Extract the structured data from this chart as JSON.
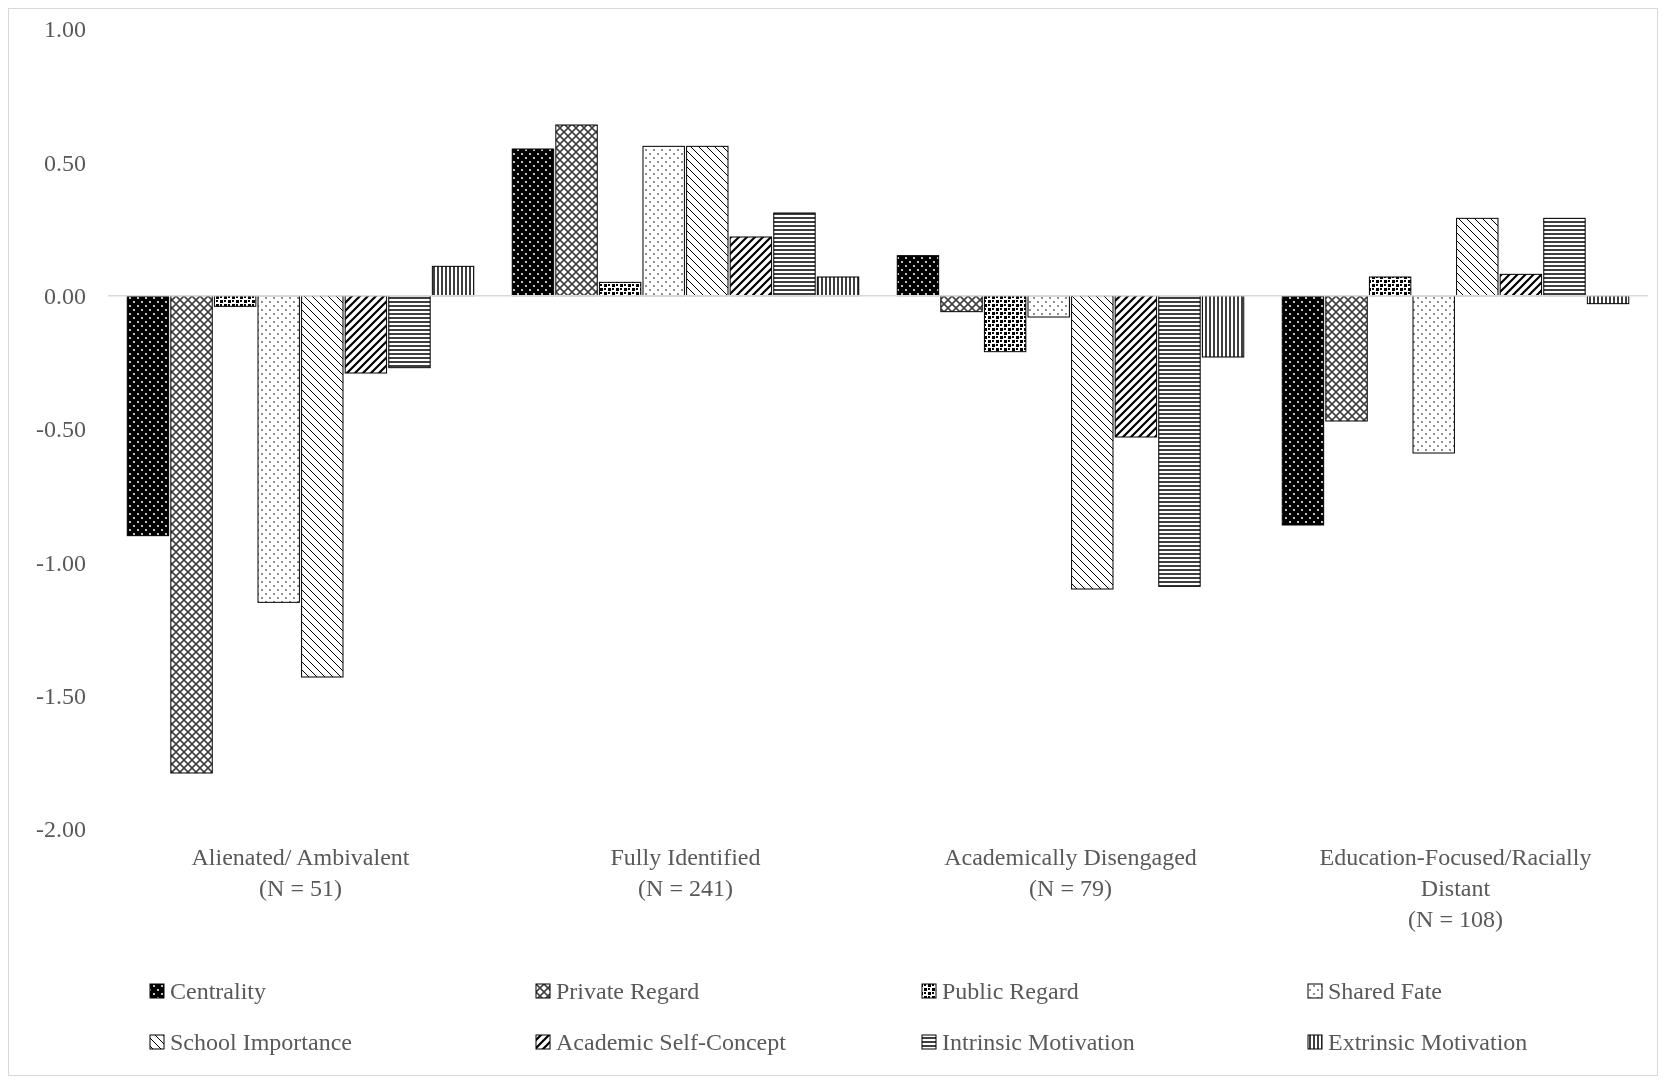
{
  "chart_data": {
    "type": "bar",
    "categories": [
      "Alienated/ Ambivalent (N = 51)",
      "Fully Identified (N = 241)",
      "Academically Disengaged (N = 79)",
      "Education-Focused/Racially Distant (N = 108)"
    ],
    "series": [
      {
        "name": "Centrality",
        "color": "#000000",
        "values": [
          -0.9,
          0.55,
          0.15,
          -0.86
        ]
      },
      {
        "name": "Private Regard",
        "color": "#000000",
        "values": [
          -1.79,
          0.64,
          -0.06,
          -0.47
        ]
      },
      {
        "name": "Public Regard",
        "color": "#000000",
        "values": [
          -0.04,
          0.05,
          -0.21,
          0.07
        ]
      },
      {
        "name": "Shared Fate",
        "color": "#000000",
        "values": [
          -1.15,
          0.56,
          -0.08,
          -0.59
        ]
      },
      {
        "name": "School Importance",
        "color": "#000000",
        "values": [
          -1.43,
          0.56,
          -1.1,
          0.29
        ]
      },
      {
        "name": "Academic Self-Concept",
        "color": "#000000",
        "values": [
          -0.29,
          0.22,
          -0.53,
          0.08
        ]
      },
      {
        "name": "Intrinsic Motivation",
        "color": "#000000",
        "values": [
          -0.27,
          0.31,
          -1.09,
          0.29
        ]
      },
      {
        "name": "Extrinsic Motivation",
        "color": "#000000",
        "values": [
          0.11,
          0.07,
          -0.23,
          -0.03
        ]
      }
    ],
    "ylim": [
      -2,
      1
    ],
    "yticks": [
      {
        "value": -2,
        "label": "-2.00"
      },
      {
        "value": -1.5,
        "label": "-1.50"
      },
      {
        "value": -1,
        "label": "-1.00"
      },
      {
        "value": -0.5,
        "label": "-0.50"
      },
      {
        "value": 0,
        "label": "0.00"
      },
      {
        "value": 0.5,
        "label": "0.50"
      },
      {
        "value": 1,
        "label": "1.00"
      }
    ],
    "legend": "bottom"
  }
}
